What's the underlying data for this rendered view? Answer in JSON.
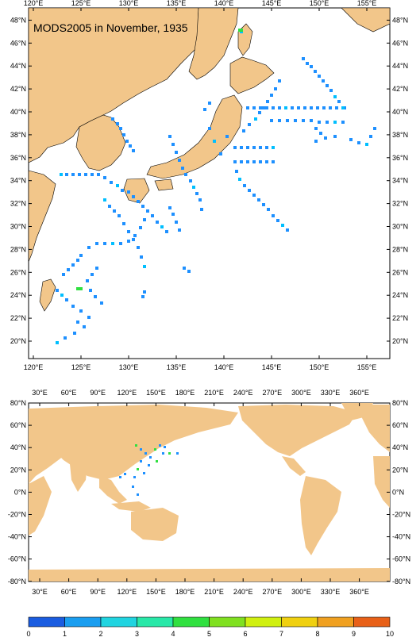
{
  "top_map": {
    "title": "MODS2005 in November, 1935",
    "lon_ticks": [
      "120°E",
      "125°E",
      "130°E",
      "135°E",
      "140°E",
      "145°E",
      "150°E",
      "155°E"
    ],
    "lat_ticks": [
      "20°N",
      "22°N",
      "24°N",
      "26°N",
      "28°N",
      "30°N",
      "32°N",
      "34°N",
      "36°N",
      "38°N",
      "40°N",
      "42°N",
      "44°N",
      "46°N",
      "48°N"
    ]
  },
  "bottom_map": {
    "lon_ticks": [
      "30°E",
      "60°E",
      "90°E",
      "120°E",
      "150°E",
      "180°E",
      "210°E",
      "240°E",
      "270°E",
      "300°E",
      "330°E",
      "360°E"
    ],
    "lat_ticks": [
      "80°N",
      "60°N",
      "40°N",
      "20°N",
      "0°N",
      "-20°N",
      "-40°N",
      "-60°N",
      "-80°N"
    ]
  },
  "colorbar": {
    "labels": [
      "0",
      "1",
      "2",
      "3",
      "4",
      "5",
      "6",
      "7",
      "8",
      "9",
      "10"
    ],
    "colors": [
      "#1a5ce0",
      "#1a9ef0",
      "#20d4e0",
      "#28e8a8",
      "#30e040",
      "#80e020",
      "#d0f010",
      "#f0d010",
      "#f0a020",
      "#e86018"
    ]
  },
  "colors": {
    "land": "#f2c68a",
    "ocean": "#ffffff",
    "obs_primary": "#1e90ff",
    "obs_secondary": "#00bfff"
  }
}
